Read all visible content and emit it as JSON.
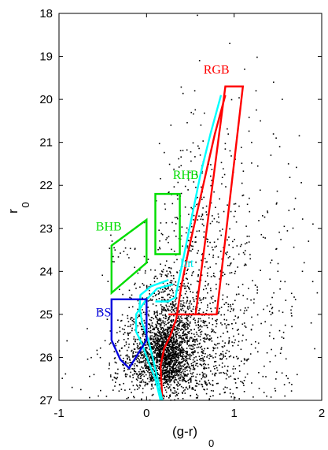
{
  "chart_data": {
    "type": "scatter",
    "title": "",
    "xlabel": "(g-r)",
    "xlabel_sub": "0",
    "ylabel": "r",
    "ylabel_sub": "0",
    "xlim": [
      -1,
      2
    ],
    "ylim": [
      27,
      18
    ],
    "y_inverted": true,
    "x_ticks": [
      -1,
      0,
      1,
      2
    ],
    "x_tick_labels": [
      "-1",
      "0",
      "1",
      "2"
    ],
    "y_ticks": [
      18,
      19,
      20,
      21,
      22,
      23,
      24,
      25,
      26,
      27
    ],
    "y_tick_labels": [
      "18",
      "19",
      "20",
      "21",
      "22",
      "23",
      "24",
      "25",
      "26",
      "27"
    ],
    "grid": false,
    "scatter": {
      "name": "stars",
      "color": "#000000",
      "clumps": [
        {
          "cx": 0.22,
          "cy": 25.95,
          "sx": 0.14,
          "sy": 0.38,
          "n": 1200
        },
        {
          "cx": 0.3,
          "cy": 25.25,
          "sx": 0.25,
          "sy": 0.55,
          "n": 600
        },
        {
          "cx": 0.45,
          "cy": 26.2,
          "sx": 0.42,
          "sy": 0.5,
          "n": 500
        },
        {
          "cx": 0.0,
          "cy": 26.3,
          "sx": 0.3,
          "sy": 0.4,
          "n": 250
        },
        {
          "cx": 0.75,
          "cy": 24.0,
          "sx": 0.35,
          "sy": 1.3,
          "n": 280
        },
        {
          "cx": 1.05,
          "cy": 25.0,
          "sx": 0.4,
          "sy": 1.0,
          "n": 180
        },
        {
          "cx": 0.55,
          "cy": 22.5,
          "sx": 0.15,
          "sy": 1.3,
          "n": 110
        },
        {
          "cx": 0.27,
          "cy": 24.7,
          "sx": 0.12,
          "sy": 0.45,
          "n": 120
        },
        {
          "cx": 0.2,
          "cy": 22.9,
          "sx": 0.08,
          "sy": 0.5,
          "n": 25
        },
        {
          "cx": -0.28,
          "cy": 23.45,
          "sx": 0.08,
          "sy": 0.18,
          "n": 18
        },
        {
          "cx": -0.2,
          "cy": 25.2,
          "sx": 0.12,
          "sy": 0.35,
          "n": 35
        },
        {
          "cx": 1.25,
          "cy": 21.8,
          "sx": 0.3,
          "sy": 1.2,
          "n": 40
        }
      ],
      "extra_points": [
        [
          1.12,
          19.3
        ],
        [
          1.25,
          19.8
        ],
        [
          1.45,
          19.6
        ],
        [
          1.55,
          20.0
        ],
        [
          1.3,
          20.5
        ],
        [
          1.48,
          20.9
        ],
        [
          1.52,
          21.1
        ],
        [
          1.62,
          21.5
        ],
        [
          0.95,
          18.7
        ],
        [
          1.2,
          21.0
        ],
        [
          1.42,
          21.3
        ],
        [
          1.7,
          22.3
        ],
        [
          1.9,
          22.9
        ],
        [
          1.85,
          23.3
        ],
        [
          1.78,
          24.0
        ],
        [
          1.95,
          24.5
        ],
        [
          1.88,
          25.2
        ],
        [
          1.92,
          25.8
        ],
        [
          1.65,
          24.9
        ],
        [
          1.72,
          26.4
        ],
        [
          1.58,
          26.9
        ],
        [
          1.5,
          24.0
        ],
        [
          1.8,
          23.8
        ],
        [
          0.55,
          19.8
        ],
        [
          0.62,
          20.6
        ],
        [
          1.38,
          22.6
        ],
        [
          -0.85,
          26.7
        ],
        [
          -0.75,
          26.75
        ],
        [
          -0.6,
          26.4
        ],
        [
          -0.55,
          26.9
        ]
      ]
    },
    "regions": [
      {
        "name": "RGB",
        "color": "#ff0000",
        "polygon": [
          [
            0.9,
            19.7
          ],
          [
            1.1,
            19.7
          ],
          [
            0.8,
            25.0
          ],
          [
            0.56,
            25.0
          ]
        ]
      },
      {
        "name": "RGB-lower",
        "color": "#ff0000",
        "polygon": [
          [
            0.25,
            25.0
          ],
          [
            0.56,
            25.0
          ]
        ]
      },
      {
        "name": "RHB",
        "color": "#00dd00",
        "polygon": [
          [
            0.1,
            22.2
          ],
          [
            0.38,
            22.2
          ],
          [
            0.38,
            23.6
          ],
          [
            0.1,
            23.6
          ]
        ]
      },
      {
        "name": "BHB",
        "color": "#00dd00",
        "polygon": [
          [
            -0.4,
            23.4
          ],
          [
            0.0,
            22.8
          ],
          [
            0.0,
            23.8
          ],
          [
            -0.4,
            24.5
          ]
        ]
      },
      {
        "name": "BS",
        "color": "#0000dd",
        "polygon": [
          [
            -0.4,
            24.65
          ],
          [
            0.0,
            24.65
          ],
          [
            0.0,
            25.6
          ],
          [
            -0.2,
            26.25
          ],
          [
            -0.3,
            26.05
          ],
          [
            -0.4,
            25.6
          ]
        ]
      }
    ],
    "lines": [
      {
        "name": "RGB-ridge",
        "color": "#ff0000",
        "points": [
          [
            0.9,
            19.9
          ],
          [
            0.78,
            20.8
          ],
          [
            0.68,
            21.7
          ],
          [
            0.58,
            22.6
          ],
          [
            0.48,
            23.5
          ],
          [
            0.4,
            24.3
          ],
          [
            0.34,
            25.1
          ],
          [
            0.27,
            25.5
          ],
          [
            0.2,
            25.8
          ],
          [
            0.16,
            26.2
          ],
          [
            0.17,
            26.6
          ],
          [
            0.18,
            27.0
          ]
        ]
      },
      {
        "name": "RGB-track",
        "color": "#00ffff",
        "points": [
          [
            0.85,
            19.9
          ],
          [
            0.73,
            20.8
          ],
          [
            0.62,
            21.7
          ],
          [
            0.53,
            22.6
          ],
          [
            0.45,
            23.4
          ],
          [
            0.37,
            24.2
          ],
          [
            0.33,
            24.6
          ],
          [
            0.25,
            24.7
          ],
          [
            0.1,
            24.7
          ]
        ]
      },
      {
        "name": "MS-track",
        "color": "#00ffff",
        "points": [
          [
            0.25,
            24.2
          ],
          [
            0.05,
            24.35
          ],
          [
            -0.07,
            24.55
          ],
          [
            -0.08,
            24.85
          ],
          [
            -0.05,
            25.2
          ],
          [
            0.02,
            25.6
          ],
          [
            0.07,
            26.0
          ],
          [
            0.12,
            26.45
          ],
          [
            0.18,
            27.0
          ]
        ]
      },
      {
        "name": "AGB-track",
        "color": "#00ffff",
        "points": [
          [
            0.3,
            24.3
          ],
          [
            0.12,
            24.4
          ],
          [
            -0.02,
            24.7
          ],
          [
            -0.12,
            25.0
          ],
          [
            -0.12,
            25.4
          ],
          [
            -0.05,
            25.7
          ],
          [
            0.02,
            26.1
          ],
          [
            0.1,
            26.5
          ],
          [
            0.16,
            27.0
          ]
        ]
      }
    ],
    "annotations": [
      {
        "text": "RGB",
        "color": "#ff0000",
        "x": 0.65,
        "y": 19.4
      },
      {
        "text": "RHB",
        "color": "#00dd00",
        "x": 0.3,
        "y": 21.85
      },
      {
        "text": "BHB",
        "color": "#00dd00",
        "x": -0.58,
        "y": 23.05
      },
      {
        "text": "Int",
        "color": "#00eeee",
        "x": 0.38,
        "y": 23.9
      },
      {
        "text": "BS",
        "color": "#0000dd",
        "x": -0.58,
        "y": 25.05
      }
    ]
  }
}
